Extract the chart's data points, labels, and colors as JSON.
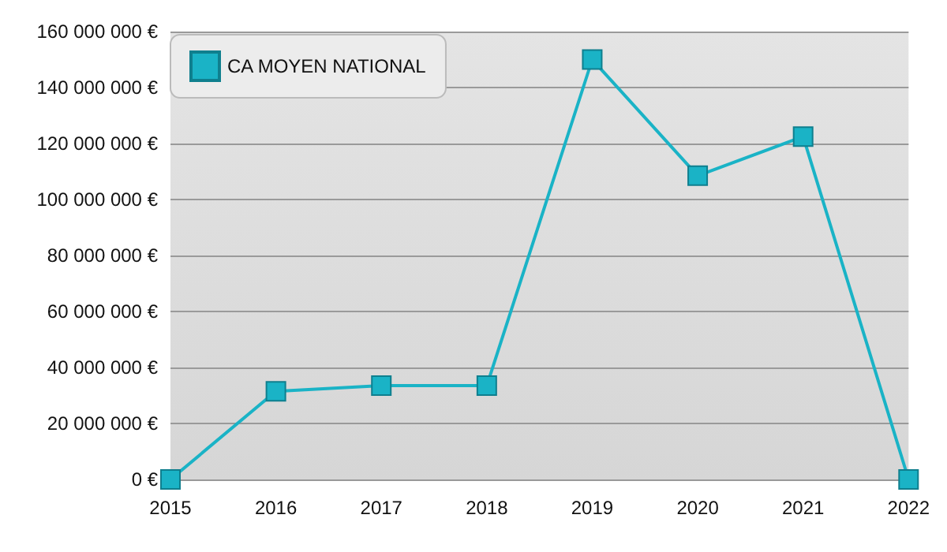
{
  "chart_data": {
    "type": "line",
    "categories": [
      "2015",
      "2016",
      "2017",
      "2018",
      "2019",
      "2020",
      "2021",
      "2022"
    ],
    "series": [
      {
        "name": "CA MOYEN NATIONAL",
        "color": "#1ab3c6",
        "values": [
          0,
          31500000,
          33500000,
          33500000,
          150000000,
          108500000,
          122500000,
          0
        ]
      }
    ],
    "ylim": [
      0,
      160000000
    ],
    "yticks": [
      {
        "value": 0,
        "label": "0 €"
      },
      {
        "value": 20000000,
        "label": "20 000 000 €"
      },
      {
        "value": 40000000,
        "label": "40 000 000 €"
      },
      {
        "value": 60000000,
        "label": "60 000 000 €"
      },
      {
        "value": 80000000,
        "label": "80 000 000 €"
      },
      {
        "value": 100000000,
        "label": "100 000 000 €"
      },
      {
        "value": 120000000,
        "label": "120 000 000 €"
      },
      {
        "value": 140000000,
        "label": "140 000 000 €"
      },
      {
        "value": 160000000,
        "label": "160 000 000 €"
      }
    ],
    "grid": "y",
    "legend": "top left",
    "marker": "square",
    "line_style": "solid"
  }
}
